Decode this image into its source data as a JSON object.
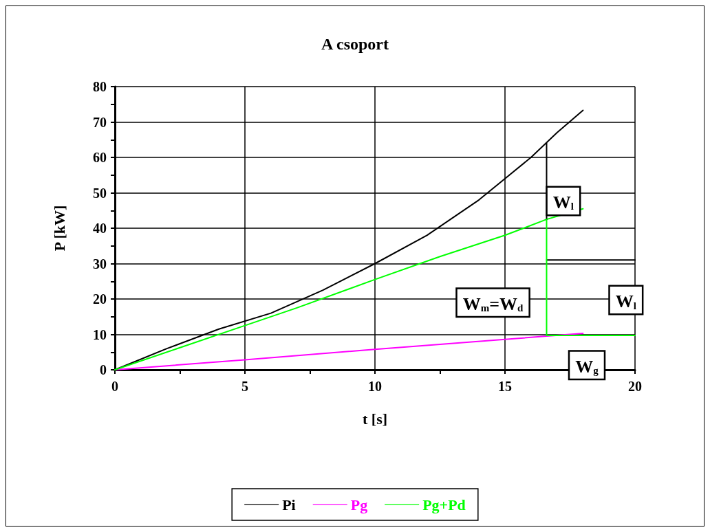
{
  "chart_data": {
    "type": "line",
    "title": "A csoport",
    "xlabel": "t [s]",
    "ylabel": "P [kW]",
    "xlim": [
      0,
      20
    ],
    "ylim": [
      0,
      80
    ],
    "xticks": [
      0,
      {
        "value": 2.5,
        "label": null
      },
      5,
      {
        "value": 7.5,
        "label": null
      },
      10,
      {
        "value": 12.5,
        "label": null
      },
      15,
      {
        "value": 17.5,
        "label": null
      },
      20
    ],
    "yticks": [
      0,
      {
        "value": 5,
        "label": null
      },
      10,
      {
        "value": 15,
        "label": null
      },
      20,
      {
        "value": 25,
        "label": null
      },
      30,
      {
        "value": 35,
        "label": null
      },
      40,
      {
        "value": 45,
        "label": null
      },
      50,
      {
        "value": 55,
        "label": null
      },
      60,
      {
        "value": 65,
        "label": null
      },
      70,
      {
        "value": 75,
        "label": null
      },
      80
    ],
    "grid": true,
    "legend": "bottom",
    "marker": "none",
    "line_style": "solid",
    "series": [
      {
        "name": "Pi",
        "color": "#000000",
        "x": [
          0,
          2,
          4,
          6,
          8,
          10,
          12,
          14,
          16,
          17,
          18
        ],
        "values": [
          0,
          6,
          11.5,
          16,
          22.5,
          30,
          38,
          48,
          60,
          67,
          73.3
        ]
      },
      {
        "name": "Pg",
        "color": "#ff00ff",
        "x": [
          0,
          5,
          10,
          15,
          18
        ],
        "values": [
          0,
          2.8,
          5.8,
          8.6,
          10.3
        ]
      },
      {
        "name": "Pg+Pd",
        "color": "#00ff00",
        "x": [
          0,
          5,
          7,
          10,
          12.5,
          15,
          16.6,
          18
        ],
        "values": [
          0,
          12.5,
          17.5,
          25.5,
          32,
          38,
          42.5,
          45.5
        ]
      },
      {
        "color": "#000000",
        "x": [
          16.6,
          16.6
        ],
        "values": [
          64,
          42.5
        ]
      },
      {
        "color": "#000000",
        "x": [
          16.6,
          20
        ],
        "values": [
          31,
          31
        ]
      },
      {
        "color": "#00ff00",
        "x": [
          16.6,
          16.6,
          20
        ],
        "values": [
          42.5,
          9.7,
          9.7
        ]
      }
    ],
    "annotations": [
      "W$_{l}$",
      "W$_{m}$=W$_{d}$",
      "W$_{l}$",
      "W$_{g}$"
    ]
  }
}
